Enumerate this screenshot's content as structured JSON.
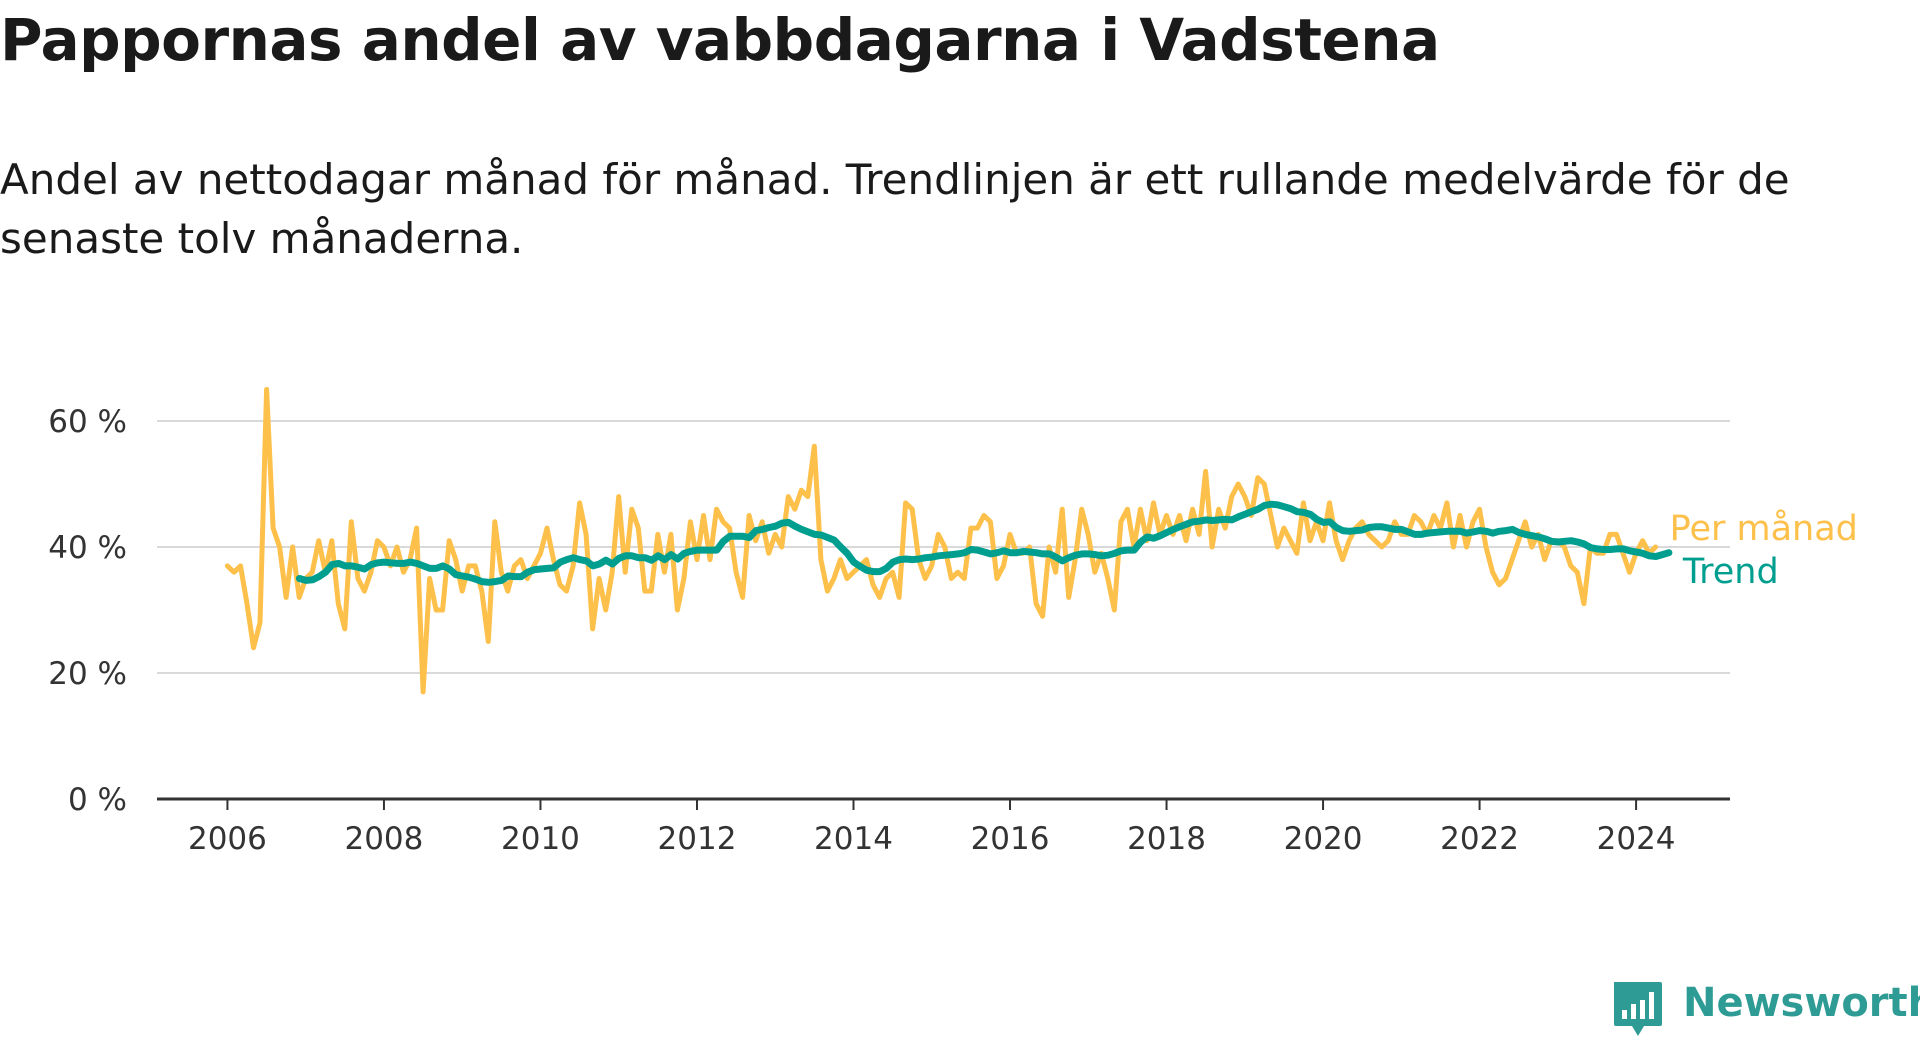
{
  "title": "Pappornas andel av vabbdagarna i Vadstena",
  "subtitle": "Andel av nettodagar månad för månad. Trendlinjen är ett rullande medelvärde för de senaste tolv månaderna.",
  "colors": {
    "monthly": "#fdc04a",
    "trend": "#009e8f",
    "grid": "#d9d9d9",
    "axis": "#333333",
    "logo": "#2e9c95"
  },
  "logo": {
    "text": "Newsworthy",
    "icon": "chart-bubble-icon"
  },
  "chart_data": {
    "type": "line",
    "x_axis": {
      "min": 2005.1,
      "max": 2025.2,
      "ticks": [
        2006,
        2008,
        2010,
        2012,
        2014,
        2016,
        2018,
        2020,
        2022,
        2024
      ],
      "tick_labels": [
        "2006",
        "2008",
        "2010",
        "2012",
        "2014",
        "2016",
        "2018",
        "2020",
        "2022",
        "2024"
      ]
    },
    "y_axis": {
      "min": 0,
      "max": 60,
      "ticks": [
        0,
        20,
        40,
        60
      ],
      "tick_labels": [
        "0 %",
        "20 %",
        "40 %",
        "60 %"
      ]
    },
    "grid": true,
    "legend": "right, at line ends",
    "series": [
      {
        "name": "Per månad",
        "color": "#fdc04a",
        "x_start": 2006.0,
        "x_step": 0.08333,
        "values": [
          37,
          36,
          37,
          31,
          24,
          28,
          65,
          43,
          40,
          32,
          40,
          32,
          35,
          36,
          41,
          36,
          41,
          31,
          27,
          44,
          35,
          33,
          36,
          41,
          40,
          37,
          40,
          36,
          38,
          43,
          17,
          35,
          30,
          30,
          41,
          38,
          33,
          37,
          37,
          33,
          25,
          44,
          36,
          33,
          37,
          38,
          35,
          37,
          39,
          43,
          38,
          34,
          33,
          37,
          47,
          42,
          27,
          35,
          30,
          36,
          48,
          36,
          46,
          43,
          33,
          33,
          42,
          36,
          42,
          30,
          35,
          44,
          38,
          45,
          38,
          46,
          44,
          43,
          36,
          32,
          45,
          41,
          44,
          39,
          42,
          40,
          48,
          46,
          49,
          48,
          56,
          38,
          33,
          35,
          38,
          35,
          36,
          37,
          38,
          34,
          32,
          35,
          36,
          32,
          47,
          46,
          38,
          35,
          37,
          42,
          40,
          35,
          36,
          35,
          43,
          43,
          45,
          44,
          35,
          37,
          42,
          39,
          39,
          40,
          31,
          29,
          40,
          36,
          46,
          32,
          38,
          46,
          42,
          36,
          39,
          35,
          30,
          44,
          46,
          40,
          46,
          41,
          47,
          42,
          45,
          42,
          45,
          41,
          46,
          42,
          52,
          40,
          46,
          43,
          48,
          50,
          48,
          45,
          51,
          50,
          45,
          40,
          43,
          41,
          39,
          47,
          41,
          44,
          41,
          47,
          41,
          38,
          41,
          43,
          44,
          42,
          41,
          40,
          41,
          44,
          42,
          42,
          45,
          44,
          42,
          45,
          43,
          47,
          40,
          45,
          40,
          44,
          46,
          40,
          36,
          34,
          35,
          38,
          41,
          44,
          40,
          42,
          38,
          41,
          41,
          40,
          37,
          36,
          31,
          40,
          39,
          39,
          42,
          42,
          39,
          36,
          39,
          41,
          39,
          40
        ]
      },
      {
        "name": "Trend",
        "color": "#009e8f",
        "x_start": 2006.92,
        "x_step": 0.08333,
        "values": [
          35,
          34.7,
          34.8,
          35.3,
          36,
          37.2,
          37.4,
          37,
          37,
          36.8,
          36.5,
          37.2,
          37.5,
          37.6,
          37.5,
          37.4,
          37.4,
          37.6,
          37.4,
          37,
          36.6,
          36.6,
          37,
          36.5,
          35.6,
          35.4,
          35.2,
          34.9,
          34.5,
          34.4,
          34.5,
          34.7,
          35.4,
          35.3,
          35.3,
          36,
          36.4,
          36.5,
          36.6,
          36.7,
          37.6,
          38,
          38.3,
          38,
          37.8,
          37,
          37.3,
          37.9,
          37.3,
          38.2,
          38.6,
          38.6,
          38.3,
          38.3,
          37.9,
          38.6,
          38,
          38.8,
          38.1,
          39,
          39.3,
          39.5,
          39.5,
          39.5,
          39.5,
          40.9,
          41.7,
          41.7,
          41.7,
          41.5,
          42.6,
          42.8,
          43.1,
          43.3,
          43.8,
          43.9,
          43.3,
          42.8,
          42.4,
          42,
          41.9,
          41.5,
          41.1,
          40,
          39,
          37.6,
          36.9,
          36.3,
          36.1,
          36.1,
          36.6,
          37.6,
          38,
          38.1,
          38,
          38.1,
          38.3,
          38.4,
          38.6,
          38.7,
          38.8,
          38.9,
          39.1,
          39.6,
          39.5,
          39.2,
          38.9,
          39.1,
          39.4,
          39.1,
          39.1,
          39.3,
          39.2,
          39.1,
          38.9,
          38.9,
          38.4,
          37.8,
          38.3,
          38.7,
          38.9,
          38.9,
          38.8,
          38.6,
          38.7,
          39,
          39.4,
          39.5,
          39.5,
          40.8,
          41.6,
          41.4,
          41.8,
          42.3,
          42.8,
          43.2,
          43.6,
          44,
          44.1,
          44.3,
          44.2,
          44.3,
          44.4,
          44.3,
          44.8,
          45.2,
          45.6,
          46,
          46.6,
          46.8,
          46.7,
          46.4,
          46.1,
          45.6,
          45.5,
          45.2,
          44.4,
          43.9,
          44,
          43.1,
          42.6,
          42.5,
          42.6,
          42.7,
          43.1,
          43.2,
          43.2,
          43,
          42.8,
          42.8,
          42.4,
          42,
          42,
          42.2,
          42.3,
          42.4,
          42.5,
          42.5,
          42.5,
          42.2,
          42.4,
          42.6,
          42.5,
          42.2,
          42.5,
          42.6,
          42.8,
          42.3,
          42,
          41.8,
          41.6,
          41.3,
          40.9,
          40.8,
          40.9,
          41,
          40.8,
          40.5,
          39.9,
          39.7,
          39.6,
          39.6,
          39.7,
          39.7,
          39.4,
          39.2,
          39,
          38.6,
          38.5,
          38.8,
          39.1
        ]
      }
    ]
  }
}
